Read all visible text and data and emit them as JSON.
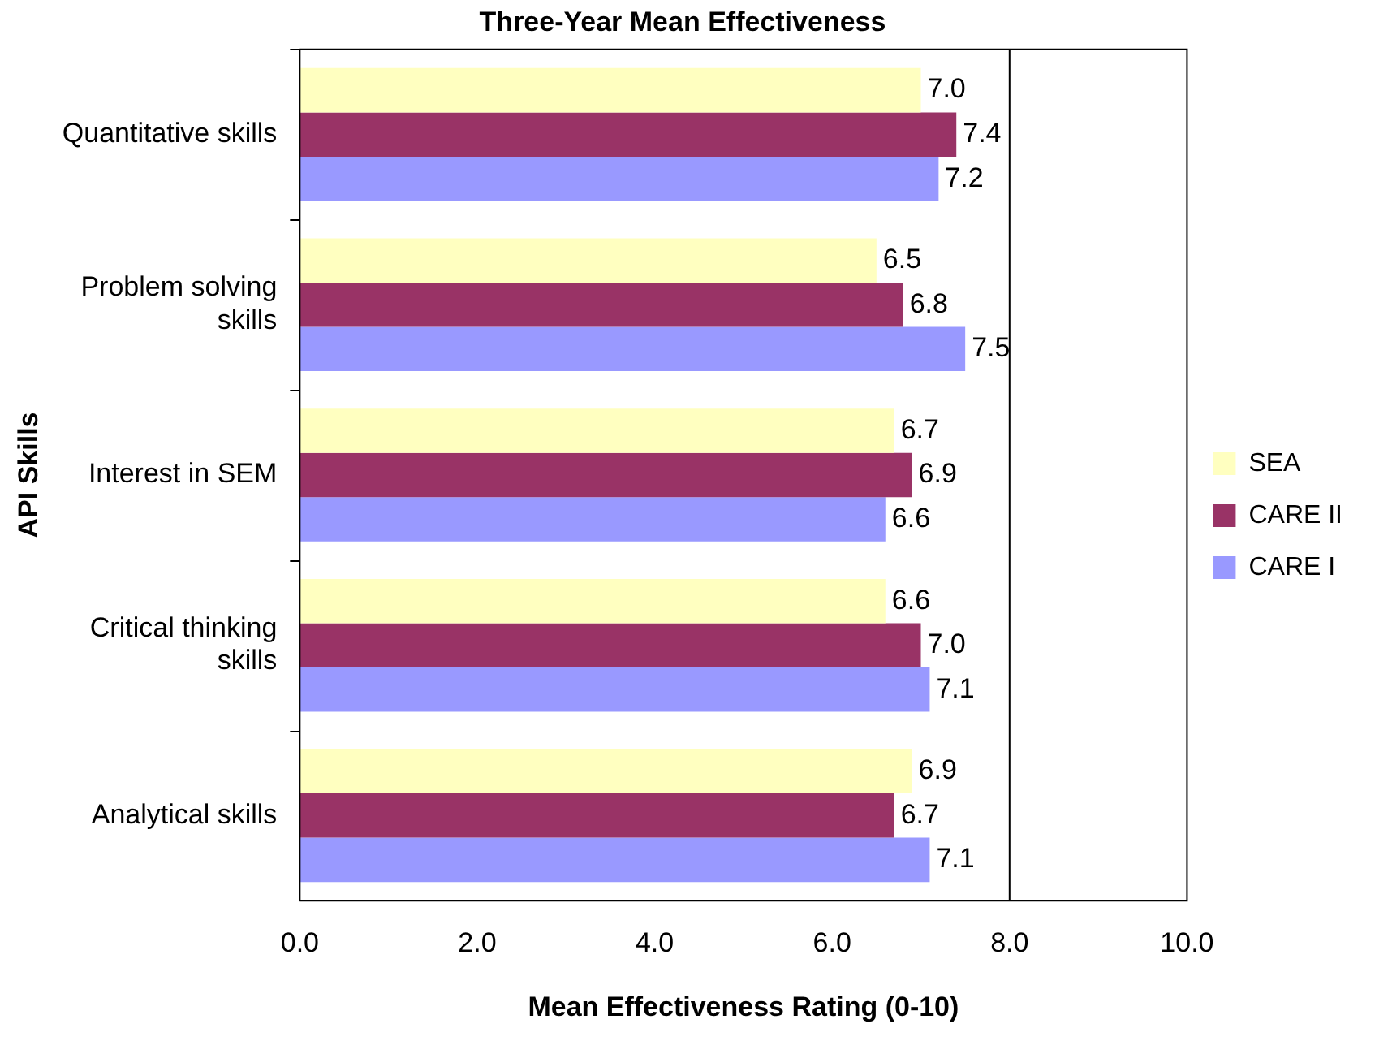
{
  "chart_data": {
    "type": "bar",
    "orientation": "horizontal",
    "title": "Three-Year Mean Effectiveness",
    "xlabel": "Mean Effectiveness Rating (0-10)",
    "ylabel": "API Skills",
    "categories": [
      "Quantitative skills",
      "Problem solving skills",
      "Interest in SEM",
      "Critical thinking skills",
      "Analytical skills"
    ],
    "series": [
      {
        "name": "SEA",
        "color": "#ffffc0",
        "values": [
          7.0,
          6.5,
          6.7,
          6.6,
          6.9
        ],
        "value_labels": [
          "7.0",
          "6.5",
          "6.7",
          "6.6",
          "6.9"
        ]
      },
      {
        "name": "CARE II",
        "color": "#993366",
        "values": [
          7.4,
          6.8,
          6.9,
          7.0,
          6.7
        ],
        "value_labels": [
          "7.4",
          "6.8",
          "6.9",
          "7.0",
          "6.7"
        ]
      },
      {
        "name": "CARE I",
        "color": "#9999ff",
        "values": [
          7.2,
          7.5,
          6.6,
          7.1,
          7.1
        ],
        "value_labels": [
          "7.2",
          "7.5",
          "6.6",
          "7.1",
          "7.1"
        ]
      }
    ],
    "xlim": [
      0,
      10
    ],
    "xticks": [
      {
        "value": 0,
        "label": "0.0"
      },
      {
        "value": 2,
        "label": "2.0"
      },
      {
        "value": 4,
        "label": "4.0"
      },
      {
        "value": 6,
        "label": "6.0"
      },
      {
        "value": 8,
        "label": "8.0"
      },
      {
        "value": 10,
        "label": "10.0"
      }
    ],
    "ref_lines": [
      {
        "axis": "x",
        "value": 8,
        "color": "#000000"
      }
    ],
    "grid": false,
    "legend": "right"
  }
}
